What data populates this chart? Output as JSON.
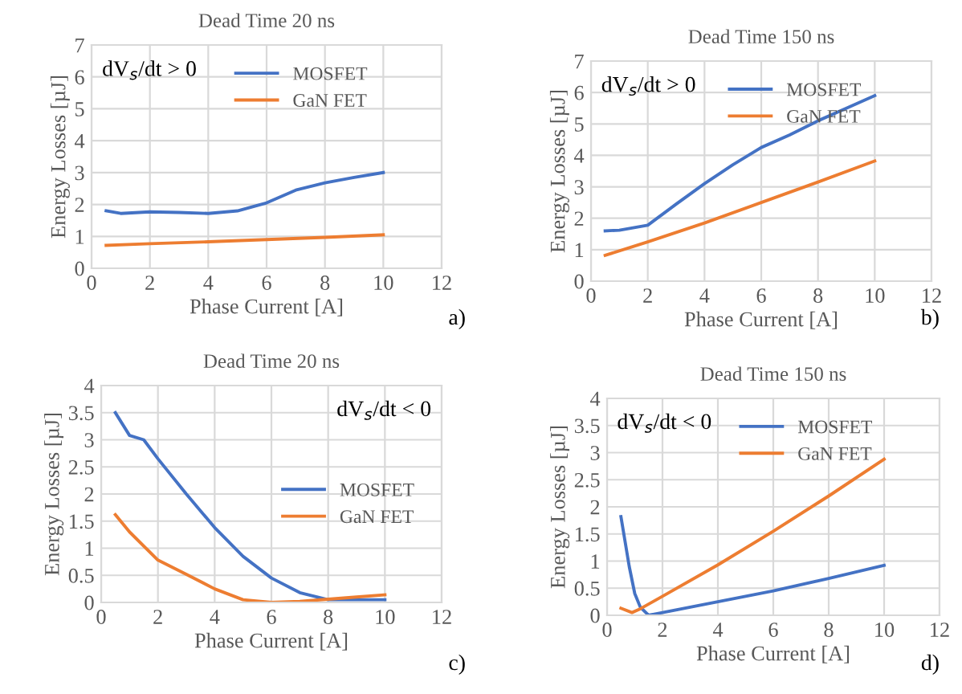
{
  "chart_data": [
    {
      "type": "line",
      "title": "Dead Time 20 ns",
      "xlabel": "Phase Current [A]",
      "ylabel": "Energy Losses [µJ]",
      "xlim": [
        0,
        12
      ],
      "xticks": [
        0,
        2,
        4,
        6,
        8,
        10,
        12
      ],
      "ylim": [
        0,
        7
      ],
      "yticks": [
        0,
        1,
        2,
        3,
        4,
        5,
        6,
        7
      ],
      "grid": true,
      "legend": "top center",
      "annotations": [
        "dV$_{s}$/dt > 0",
        "a)"
      ],
      "series": [
        {
          "name": "MOSFET",
          "color": "#4472c4",
          "x": [
            0.5,
            1,
            2,
            3,
            4,
            5,
            6,
            7,
            8,
            9,
            10
          ],
          "values": [
            1.8,
            1.72,
            1.77,
            1.75,
            1.72,
            1.8,
            2.05,
            2.45,
            2.68,
            2.85,
            3.0
          ]
        },
        {
          "name": "GaN FET",
          "color": "#ed7d31",
          "x": [
            0.5,
            2,
            4,
            6,
            8,
            10
          ],
          "values": [
            0.72,
            0.77,
            0.83,
            0.9,
            0.97,
            1.05
          ]
        }
      ]
    },
    {
      "type": "line",
      "title": "Dead Time 150 ns",
      "xlabel": "Phase Current [A]",
      "ylabel": "Energy Losses [µJ]",
      "xlim": [
        0,
        12
      ],
      "xticks": [
        0,
        2,
        4,
        6,
        8,
        10,
        12
      ],
      "ylim": [
        0,
        7
      ],
      "yticks": [
        0,
        1,
        2,
        3,
        4,
        5,
        6,
        7
      ],
      "grid": true,
      "legend": "top center",
      "annotations": [
        "dV$_{s}$/dt > 0",
        "b)"
      ],
      "series": [
        {
          "name": "MOSFET",
          "color": "#4472c4",
          "x": [
            0.5,
            1,
            2,
            3,
            4,
            5,
            6,
            7,
            8,
            9,
            10
          ],
          "values": [
            1.6,
            1.62,
            1.78,
            2.45,
            3.1,
            3.7,
            4.25,
            4.65,
            5.1,
            5.5,
            5.9
          ]
        },
        {
          "name": "GaN FET",
          "color": "#ed7d31",
          "x": [
            0.5,
            2,
            4,
            6,
            8,
            10
          ],
          "values": [
            0.82,
            1.25,
            1.85,
            2.5,
            3.15,
            3.82
          ]
        }
      ]
    },
    {
      "type": "line",
      "title": "Dead Time 20 ns",
      "xlabel": "Phase Current [A]",
      "ylabel": "Energy Losses [µJ]",
      "xlim": [
        0,
        12
      ],
      "xticks": [
        0,
        2,
        4,
        6,
        8,
        10,
        12
      ],
      "ylim": [
        0,
        4
      ],
      "yticks": [
        0,
        0.5,
        1,
        1.5,
        2,
        2.5,
        3,
        3.5,
        4
      ],
      "grid": true,
      "legend": "center right",
      "annotations": [
        "dV$_{s}$/dt < 0",
        "c)"
      ],
      "series": [
        {
          "name": "MOSFET",
          "color": "#4472c4",
          "x": [
            0.5,
            1,
            1.5,
            2,
            3,
            4,
            5,
            6,
            7,
            8,
            9,
            10
          ],
          "values": [
            3.5,
            3.08,
            3.0,
            2.65,
            2.0,
            1.38,
            0.85,
            0.45,
            0.18,
            0.05,
            0.05,
            0.05
          ]
        },
        {
          "name": "GaN FET",
          "color": "#ed7d31",
          "x": [
            0.5,
            1,
            2,
            3,
            4,
            5,
            6,
            7,
            8,
            9,
            10
          ],
          "values": [
            1.62,
            1.3,
            0.78,
            0.52,
            0.25,
            0.05,
            0.0,
            0.02,
            0.06,
            0.1,
            0.14
          ]
        }
      ]
    },
    {
      "type": "line",
      "title": "Dead Time 150 ns",
      "xlabel": "Phase Current [A]",
      "ylabel": "Energy Losses [µJ]",
      "xlim": [
        0,
        12
      ],
      "xticks": [
        0,
        2,
        4,
        6,
        8,
        10,
        12
      ],
      "ylim": [
        0,
        4
      ],
      "yticks": [
        0,
        0.5,
        1,
        1.5,
        2,
        2.5,
        3,
        3.5,
        4
      ],
      "grid": true,
      "legend": "top center",
      "annotations": [
        "dV$_{s}$/dt < 0",
        "d)"
      ],
      "series": [
        {
          "name": "MOSFET",
          "color": "#4472c4",
          "x": [
            0.5,
            0.8,
            1,
            1.2,
            1.5,
            2,
            4,
            6,
            8,
            10
          ],
          "values": [
            1.82,
            0.9,
            0.4,
            0.15,
            0.0,
            0.05,
            0.25,
            0.45,
            0.68,
            0.92
          ]
        },
        {
          "name": "GaN FET",
          "color": "#ed7d31",
          "x": [
            0.5,
            0.9,
            1.2,
            2,
            4,
            6,
            8,
            10
          ],
          "values": [
            0.13,
            0.05,
            0.12,
            0.35,
            0.93,
            1.55,
            2.2,
            2.88
          ]
        }
      ]
    }
  ]
}
